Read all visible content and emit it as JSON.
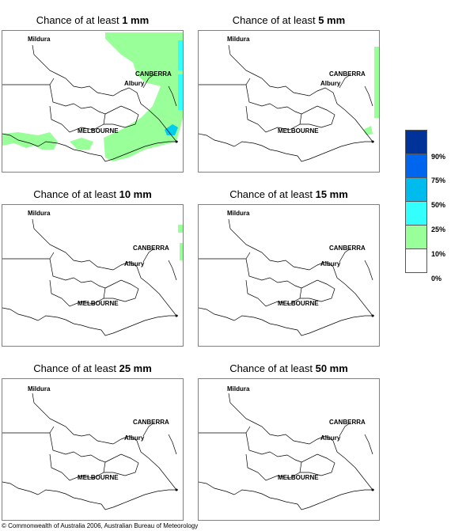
{
  "panel_prefix": "Chance of at least",
  "panels": [
    {
      "amount": "1 mm"
    },
    {
      "amount": "5 mm"
    },
    {
      "amount": "10 mm"
    },
    {
      "amount": "15 mm"
    },
    {
      "amount": "25 mm"
    },
    {
      "amount": "50 mm"
    }
  ],
  "places": {
    "mildura": "Mildura",
    "canberra": "CANBERRA",
    "albury": "Albury",
    "melbourne": "MELBOURNE"
  },
  "legend": {
    "labels": [
      "90%",
      "75%",
      "50%",
      "25%",
      "10%",
      "0%"
    ],
    "colors": [
      "#003399",
      "#0066ee",
      "#00bbee",
      "#33ffff",
      "#99ff99",
      "#ffffff"
    ]
  },
  "colors": {
    "light_green": "#99ff99",
    "cyan": "#33ffff",
    "light_blue": "#00ccee",
    "border": "#000000"
  },
  "copyright": "© Commonwealth of Australia 2006, Australian Bureau of Meteorology"
}
